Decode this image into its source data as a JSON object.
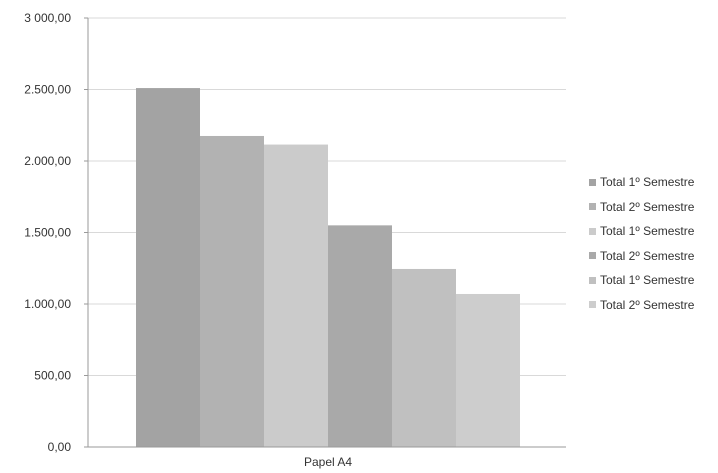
{
  "chart_data": {
    "type": "bar",
    "categories": [
      "Papel A4"
    ],
    "series": [
      {
        "name": "Total 1º Semestre",
        "values": [
          2510
        ],
        "color": "#a3a3a3"
      },
      {
        "name": "Total 2º Semestre",
        "values": [
          2175
        ],
        "color": "#b2b2b2"
      },
      {
        "name": "Total 1º Semestre",
        "values": [
          2115
        ],
        "color": "#cbcbcb"
      },
      {
        "name": "Total 2º Semestre",
        "values": [
          1550
        ],
        "color": "#a9a9a9"
      },
      {
        "name": "Total 1º Semestre",
        "values": [
          1245
        ],
        "color": "#c0c0c0"
      },
      {
        "name": "Total 2º Semestre",
        "values": [
          1070
        ],
        "color": "#cdcdcd"
      }
    ],
    "ylim": [
      0,
      3000
    ],
    "yticks": [
      0,
      500,
      1000,
      1500,
      2000,
      2500,
      3000
    ],
    "ytick_labels": [
      "0,00",
      "500,00",
      "1.000,00",
      "1.500,00",
      "2.000,00",
      "2.500,00",
      "3 000,00"
    ],
    "grid": true,
    "legend_position": "right",
    "title": "",
    "xlabel": "",
    "ylabel": ""
  }
}
